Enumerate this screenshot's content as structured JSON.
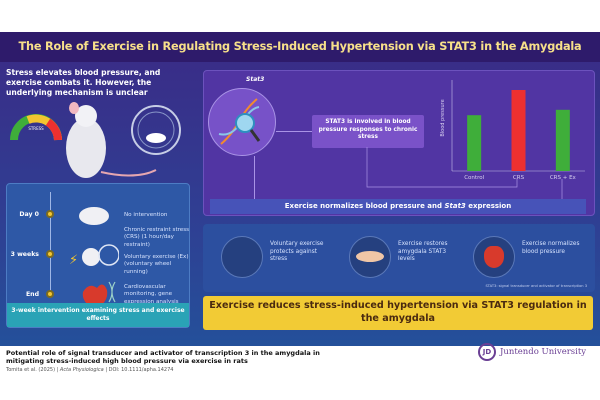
{
  "title": "The Role of Exercise in Regulating Stress-Induced Hypertension via STAT3 in the Amygdala",
  "intro": "Stress elevates blood pressure, and exercise combats it. However, the underlying mechanism is unclear",
  "gauge_label": "STRESS",
  "timeline": {
    "steps": [
      {
        "label": "Day 0",
        "text": "No intervention"
      },
      {
        "label": "3 weeks",
        "text": "Chronic restraint stress (CRS) (1 hour/day restraint)",
        "text2": "Voluntary exercise (Ex) (voluntary wheel running)"
      },
      {
        "label": "End",
        "text": "Cardiovascular monitoring, gene expression analysis"
      }
    ],
    "footer": "3-week intervention examining stress and exercise effects"
  },
  "stat3": {
    "gene_label": "Stat3",
    "box": "STAT3 is involved in blood pressure responses to chronic stress"
  },
  "normalizes": {
    "pre": "Exercise normalizes blood pressure and ",
    "gene": "Stat3",
    "post": " expression"
  },
  "chart_data": {
    "type": "bar",
    "categories": [
      "Control",
      "CRS",
      "CRS + Ex"
    ],
    "values": [
      0.62,
      0.9,
      0.68
    ],
    "colors": [
      "#3fae3a",
      "#ee3030",
      "#3fae3a"
    ],
    "ylabel": "Blood pressure",
    "xlabel": "",
    "ylim": [
      0,
      1
    ]
  },
  "findings": [
    {
      "text": "Voluntary exercise protects against stress",
      "icon": "wheel-icon"
    },
    {
      "text": "Exercise restores amygdala STAT3 levels",
      "icon": "amygdala-icon"
    },
    {
      "text": "Exercise normalizes blood pressure",
      "icon": "heart-icon"
    }
  ],
  "abbreviation": "STAT3: signal transducer and activator of transcription 3",
  "conclusion": "Exercise reduces stress-induced hypertension via STAT3 regulation in the amygdala",
  "reference": {
    "title": "Potential role of signal transducer and activator of transcription 3 in the amygdala in mitigating stress-induced high blood pressure via exercise in rats",
    "authors": "Tomita et al. (2025)",
    "journal": "Acta Physiologica",
    "doi": "DOI: 10.1111/apha.14274",
    "sep": "|"
  },
  "logo": "Juntendo University"
}
